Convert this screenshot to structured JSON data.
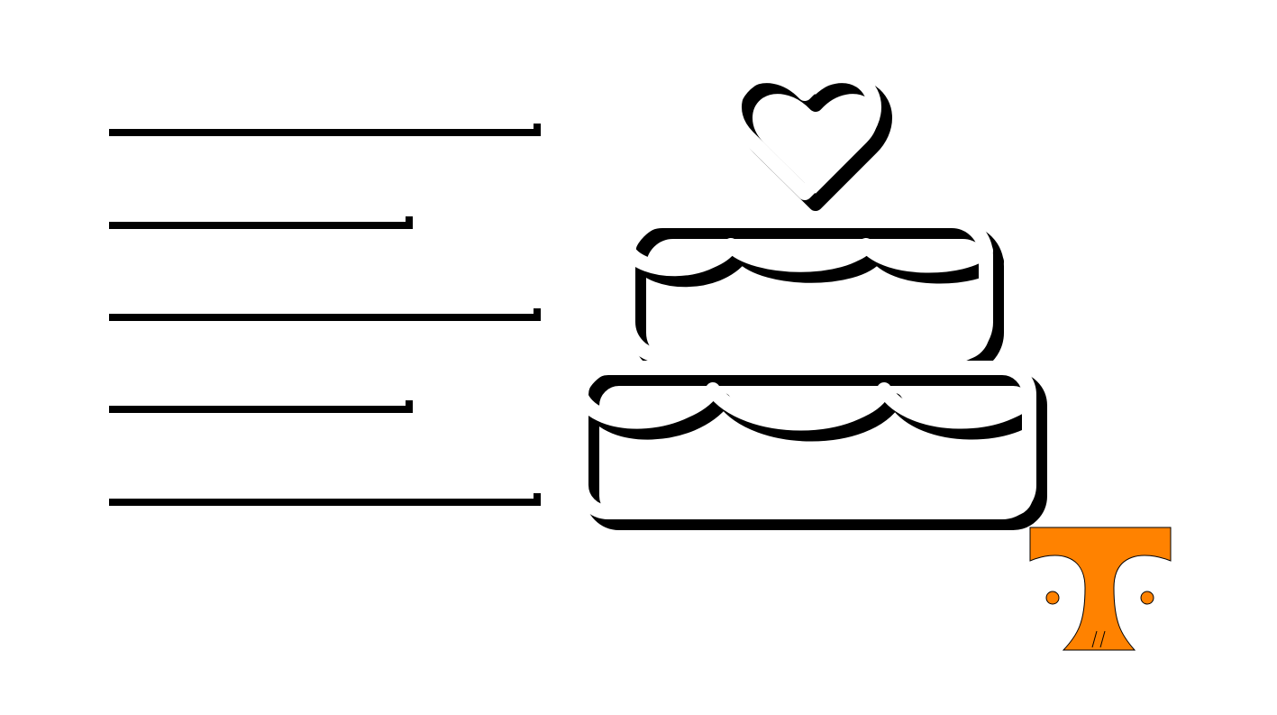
{
  "graphic": {
    "icon": "cake-with-heart-icon",
    "lines": 5
  },
  "logo": {
    "icon": "power-t-logo",
    "color": "#FF8200"
  },
  "colors": {
    "background": "#FFFFFF",
    "stroke": "#FFFFFF",
    "shadow": "#000000"
  }
}
